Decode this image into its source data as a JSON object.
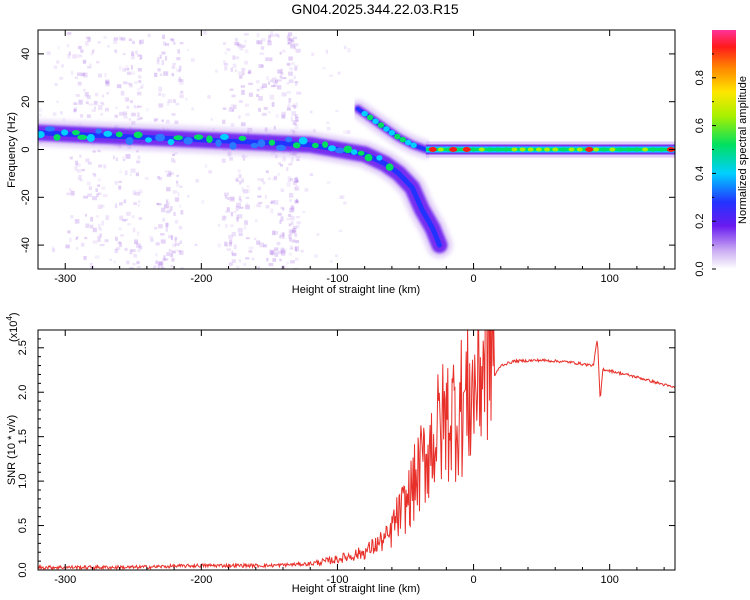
{
  "title": "GN04.2025.344.22.03.R15",
  "chart_data": [
    {
      "type": "heatmap",
      "name": "spectrogram",
      "xlabel": "Height of straight line (km)",
      "ylabel": "Frequency (Hz)",
      "xlim": [
        -320,
        148
      ],
      "ylim": [
        -50,
        50
      ],
      "xticks": [
        -300,
        -200,
        -100,
        0,
        100
      ],
      "yticks": [
        -40,
        -20,
        0,
        20,
        40
      ],
      "colorbar": {
        "label": "Normalized spectral amplitude",
        "range": [
          0,
          1
        ],
        "ticks": [
          "0.0",
          "0.2",
          "0.4",
          "0.6",
          "0.8"
        ]
      },
      "ridge_main": [
        [
          -320,
          7
        ],
        [
          -280,
          6
        ],
        [
          -240,
          5
        ],
        [
          -200,
          4
        ],
        [
          -160,
          3
        ],
        [
          -120,
          2
        ],
        [
          -100,
          0
        ],
        [
          -80,
          -2
        ],
        [
          -65,
          -6
        ],
        [
          -55,
          -10
        ],
        [
          -45,
          -16
        ],
        [
          -38,
          -25
        ],
        [
          -30,
          -33
        ],
        [
          -25,
          -40
        ]
      ],
      "ridge_second": [
        [
          -85,
          17
        ],
        [
          -75,
          13
        ],
        [
          -65,
          9
        ],
        [
          -55,
          5
        ],
        [
          -45,
          2
        ],
        [
          -35,
          0
        ]
      ],
      "ridge_carrier": [
        [
          -35,
          0
        ],
        [
          0,
          0
        ],
        [
          50,
          0
        ],
        [
          100,
          0
        ],
        [
          148,
          0
        ]
      ],
      "hot_points": [
        [
          -30,
          0
        ],
        [
          -15,
          0
        ],
        [
          -5,
          0
        ],
        [
          85,
          0
        ],
        [
          145,
          0
        ]
      ]
    },
    {
      "type": "line",
      "name": "snr",
      "xlabel": "Height of straight line (km)",
      "ylabel": "SNR (10 * v/v)",
      "y_multiplier": "(x10",
      "y_multiplier_exp": "4",
      "xlim": [
        -320,
        148
      ],
      "ylim": [
        0,
        2.7
      ],
      "xticks": [
        -300,
        -200,
        -100,
        0,
        100
      ],
      "yticks": [
        "0.0",
        "0.5",
        "1.0",
        "1.5",
        "2.0",
        "2.5"
      ],
      "series_color": "#e8302a",
      "envelope": [
        [
          -320,
          0.03
        ],
        [
          -250,
          0.03
        ],
        [
          -200,
          0.05
        ],
        [
          -150,
          0.05
        ],
        [
          -120,
          0.07
        ],
        [
          -100,
          0.12
        ],
        [
          -80,
          0.2
        ],
        [
          -60,
          0.4
        ],
        [
          -50,
          0.6
        ],
        [
          -40,
          0.9
        ],
        [
          -30,
          1.2
        ],
        [
          -20,
          1.4
        ],
        [
          -10,
          1.5
        ],
        [
          0,
          1.65
        ],
        [
          10,
          2.05
        ],
        [
          20,
          2.3
        ],
        [
          30,
          2.35
        ],
        [
          50,
          2.36
        ],
        [
          70,
          2.34
        ],
        [
          88,
          2.3
        ],
        [
          91,
          2.6
        ],
        [
          93,
          1.9
        ],
        [
          95,
          2.26
        ],
        [
          120,
          2.17
        ],
        [
          148,
          2.05
        ]
      ]
    }
  ]
}
